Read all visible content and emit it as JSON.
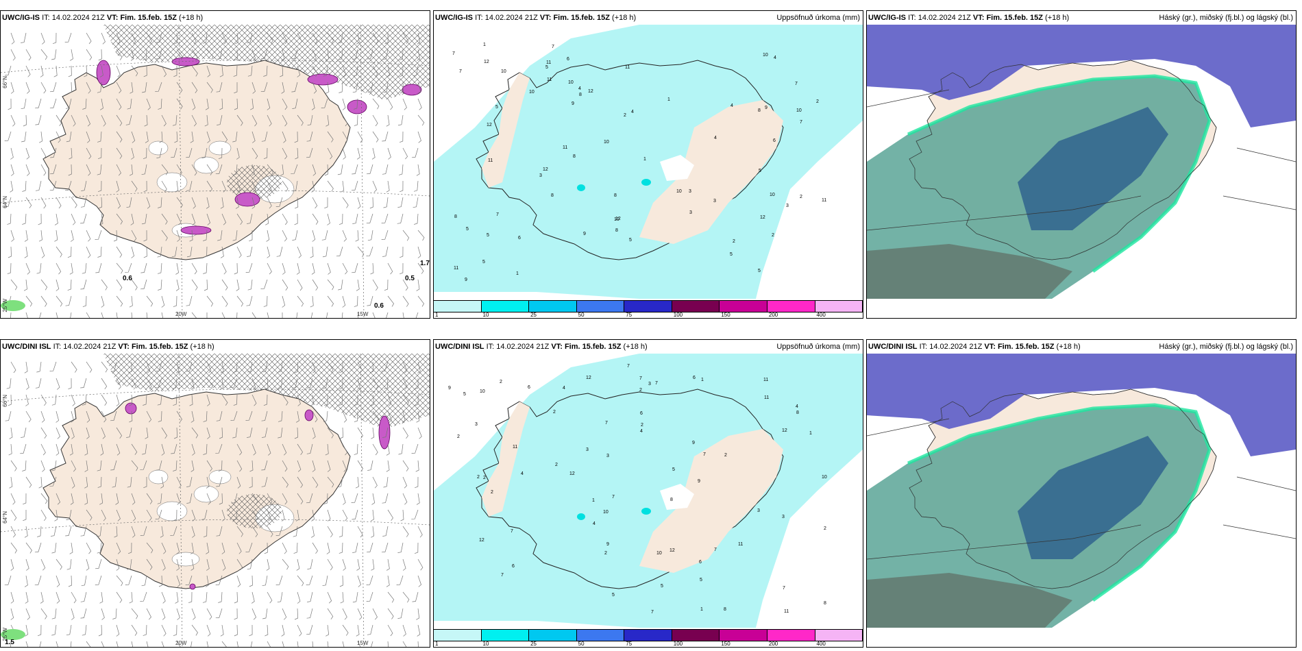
{
  "panels": [
    {
      "model": "UWC/IG-IS",
      "it_label": "IT:",
      "it_value": "14.02.2024 21Z",
      "vt_label": "VT: Fim. 15.feb. 15Z",
      "lead": "(+18 h)",
      "right_title": "",
      "type": "wind",
      "values": [
        "0.6",
        "0.5",
        "0.6",
        "1.7"
      ]
    },
    {
      "model": "UWC/IG-IS",
      "it_label": "IT:",
      "it_value": "14.02.2024 21Z",
      "vt_label": "VT: Fim. 15.feb. 15Z",
      "lead": "(+18 h)",
      "right_title": "Uppsöfnuð úrkoma (mm)",
      "type": "precip"
    },
    {
      "model": "UWC/IG-IS",
      "it_label": "IT:",
      "it_value": "14.02.2024 21Z",
      "vt_label": "VT: Fim. 15.feb. 15Z",
      "lead": "(+18 h)",
      "right_title": "Háský (gr.), miðský (fj.bl.) og lágský (bl.)",
      "type": "cloud"
    },
    {
      "model": "UWC/DINI ISL",
      "it_label": "IT:",
      "it_value": "14.02.2024 21Z",
      "vt_label": "VT: Fim. 15.feb. 15Z",
      "lead": "(+18 h)",
      "right_title": "",
      "type": "wind",
      "values": [
        "1.5"
      ]
    },
    {
      "model": "UWC/DINI ISL",
      "it_label": "IT:",
      "it_value": "14.02.2024 21Z",
      "vt_label": "VT: Fim. 15.feb. 15Z",
      "lead": "(+18 h)",
      "right_title": "Uppsöfnuð úrkoma (mm)",
      "type": "precip"
    },
    {
      "model": "UWC/DINI ISL",
      "it_label": "IT:",
      "it_value": "14.02.2024 21Z",
      "vt_label": "VT: Fim. 15.feb. 15Z",
      "lead": "(+18 h)",
      "right_title": "Háský (gr.), miðský (fj.bl.) og lágský (bl.)",
      "type": "cloud"
    }
  ],
  "axis_labels": {
    "lat_66": "66°N",
    "lat_64": "64°N",
    "lon_25": "25°W",
    "lon_20": "20W",
    "lon_15": "15W"
  },
  "legend": {
    "ticks": [
      "1",
      "10",
      "25",
      "50",
      "75",
      "100",
      "150",
      "200",
      "400"
    ],
    "colors": [
      "#c6f7f7",
      "#00f0f0",
      "#00c8f0",
      "#3c78f0",
      "#2828c8",
      "#780050",
      "#c80096",
      "#ff28c8",
      "#f5b4f5"
    ]
  },
  "colors": {
    "land": "#f7e9dc",
    "precip_light": "#b4f5f5",
    "cloud_high": "#6464c8",
    "cloud_mid": "#5aa596",
    "cloud_low": "#285a8c"
  }
}
